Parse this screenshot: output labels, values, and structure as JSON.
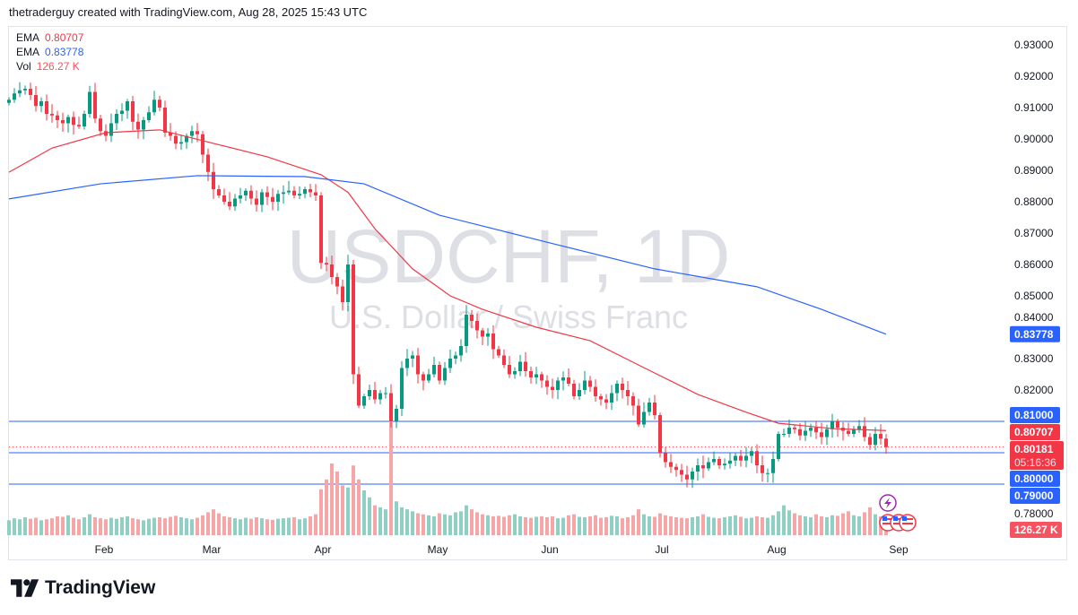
{
  "header": {
    "credit": "thetraderguy created with TradingView.com, Aug 28, 2025 15:43 UTC"
  },
  "legend": [
    {
      "name": "EMA",
      "value": "0.80707",
      "color": "#F23645"
    },
    {
      "name": "EMA",
      "value": "0.83778",
      "color": "#2962FF"
    },
    {
      "name": "Vol",
      "value": "126.27 K",
      "color": "#F7525F"
    }
  ],
  "watermark": {
    "symbol": "USDCHF, 1D",
    "description": "U.S. Dollar / Swiss Franc"
  },
  "logo": {
    "text": "TradingView"
  },
  "icons": {
    "event": "lightning-icon",
    "flags": "us-flag-icon"
  },
  "colors": {
    "up": "#089981",
    "down": "#F23645",
    "ema_fast": "#F23645",
    "ema_slow": "#2962FF",
    "level": "#2962FF"
  },
  "chart_data": {
    "type": "candlestick",
    "symbol": "USDCHF",
    "interval": "1D",
    "start_date": "2025-01-13",
    "end_date": "2025-08-28",
    "ylim": [
      0.775,
      0.935
    ],
    "price_ticks": [
      "0.93000",
      "0.92000",
      "0.91000",
      "0.90000",
      "0.89000",
      "0.88000",
      "0.87000",
      "0.86000",
      "0.85000",
      "0.84000",
      "0.83000",
      "0.82000",
      "0.81000",
      "0.80000",
      "0.79000",
      "0.78000"
    ],
    "time_labels": [
      "Feb",
      "Mar",
      "Apr",
      "May",
      "Jun",
      "Jul",
      "Aug",
      "Sep"
    ],
    "closes": [
      0.9125,
      0.9145,
      0.9155,
      0.916,
      0.914,
      0.9105,
      0.912,
      0.908,
      0.9075,
      0.906,
      0.905,
      0.907,
      0.9045,
      0.904,
      0.908,
      0.915,
      0.9065,
      0.9025,
      0.901,
      0.905,
      0.908,
      0.909,
      0.912,
      0.9055,
      0.903,
      0.906,
      0.9085,
      0.9125,
      0.91,
      0.902,
      0.901,
      0.8985,
      0.899,
      0.901,
      0.9025,
      0.9015,
      0.895,
      0.8895,
      0.884,
      0.882,
      0.88,
      0.8785,
      0.881,
      0.882,
      0.8835,
      0.881,
      0.879,
      0.883,
      0.8815,
      0.88,
      0.8825,
      0.883,
      0.8835,
      0.882,
      0.8825,
      0.884,
      0.883,
      0.882,
      0.8605,
      0.86,
      0.856,
      0.853,
      0.848,
      0.86,
      0.825,
      0.815,
      0.818,
      0.82,
      0.817,
      0.819,
      0.819,
      0.81,
      0.814,
      0.827,
      0.83,
      0.831,
      0.825,
      0.823,
      0.825,
      0.828,
      0.823,
      0.827,
      0.83,
      0.831,
      0.834,
      0.844,
      0.842,
      0.839,
      0.837,
      0.838,
      0.833,
      0.831,
      0.828,
      0.825,
      0.826,
      0.829,
      0.826,
      0.824,
      0.825,
      0.823,
      0.821,
      0.82,
      0.823,
      0.824,
      0.822,
      0.818,
      0.82,
      0.823,
      0.821,
      0.818,
      0.817,
      0.816,
      0.819,
      0.822,
      0.82,
      0.818,
      0.815,
      0.809,
      0.813,
      0.816,
      0.812,
      0.8,
      0.797,
      0.7955,
      0.7945,
      0.793,
      0.7915,
      0.794,
      0.796,
      0.795,
      0.797,
      0.798,
      0.796,
      0.7965,
      0.7975,
      0.799,
      0.7975,
      0.799,
      0.8005,
      0.796,
      0.7935,
      0.7935,
      0.798,
      0.806,
      0.806,
      0.808,
      0.8075,
      0.8055,
      0.807,
      0.808,
      0.8065,
      0.805,
      0.8075,
      0.81,
      0.808,
      0.807,
      0.806,
      0.8075,
      0.8085,
      0.805,
      0.8025,
      0.806,
      0.8045,
      0.80181
    ],
    "volumes_k": [
      150,
      170,
      160,
      180,
      165,
      175,
      150,
      160,
      170,
      190,
      185,
      200,
      175,
      160,
      180,
      210,
      180,
      170,
      160,
      175,
      165,
      180,
      190,
      170,
      160,
      150,
      165,
      175,
      180,
      170,
      185,
      195,
      180,
      170,
      160,
      175,
      200,
      230,
      260,
      220,
      190,
      180,
      170,
      160,
      175,
      165,
      180,
      170,
      160,
      155,
      165,
      170,
      175,
      180,
      160,
      170,
      190,
      210,
      460,
      560,
      720,
      640,
      500,
      480,
      700,
      560,
      450,
      380,
      300,
      280,
      260,
      1150,
      340,
      280,
      260,
      240,
      220,
      210,
      200,
      190,
      220,
      210,
      200,
      230,
      240,
      300,
      260,
      230,
      210,
      200,
      190,
      195,
      185,
      200,
      210,
      190,
      180,
      175,
      185,
      190,
      180,
      190,
      170,
      175,
      200,
      210,
      185,
      180,
      190,
      200,
      175,
      180,
      195,
      190,
      170,
      180,
      200,
      260,
      210,
      190,
      185,
      220,
      200,
      190,
      180,
      175,
      170,
      180,
      190,
      210,
      185,
      175,
      170,
      180,
      190,
      200,
      185,
      170,
      175,
      190,
      180,
      175,
      200,
      240,
      300,
      250,
      220,
      200,
      190,
      180,
      210,
      190,
      180,
      200,
      195,
      220,
      240,
      200,
      190,
      230,
      280,
      210,
      190,
      126.27
    ],
    "ema_fast": [
      [
        "2025-01-13",
        0.8894
      ],
      [
        "2025-01-23",
        0.8971
      ],
      [
        "2025-02-06",
        0.902
      ],
      [
        "2025-02-20",
        0.9029
      ],
      [
        "2025-03-06",
        0.8986
      ],
      [
        "2025-03-20",
        0.8943
      ],
      [
        "2025-04-03",
        0.8886
      ],
      [
        "2025-04-10",
        0.883
      ],
      [
        "2025-04-17",
        0.8714
      ],
      [
        "2025-04-28",
        0.8586
      ],
      [
        "2025-05-07",
        0.85
      ],
      [
        "2025-05-15",
        0.8457
      ],
      [
        "2025-05-29",
        0.84
      ],
      [
        "2025-06-12",
        0.8357
      ],
      [
        "2025-06-26",
        0.8271
      ],
      [
        "2025-07-10",
        0.8186
      ],
      [
        "2025-07-23",
        0.8129
      ],
      [
        "2025-07-31",
        0.8094
      ],
      [
        "2025-08-14",
        0.8077
      ],
      [
        "2025-08-28",
        0.80707
      ]
    ],
    "ema_slow": [
      [
        "2025-01-13",
        0.8809
      ],
      [
        "2025-02-05",
        0.8857
      ],
      [
        "2025-03-03",
        0.8883
      ],
      [
        "2025-03-31",
        0.888
      ],
      [
        "2025-04-15",
        0.8857
      ],
      [
        "2025-05-05",
        0.8757
      ],
      [
        "2025-06-02",
        0.8671
      ],
      [
        "2025-06-30",
        0.8586
      ],
      [
        "2025-07-25",
        0.8529
      ],
      [
        "2025-08-12",
        0.8457
      ],
      [
        "2025-08-28",
        0.83778
      ]
    ],
    "horizontal_levels": [
      0.81,
      0.8,
      0.79
    ],
    "last_price": 0.80181,
    "countdown": "05:16:36",
    "axis_labels": [
      {
        "text": "0.83778",
        "value": 0.83778,
        "color": "#2962FF"
      },
      {
        "text": "0.81000",
        "value": 0.81,
        "color": "#2962FF"
      },
      {
        "text": "0.80707",
        "value": 0.80707,
        "color": "#F23645"
      },
      {
        "text": "0.80181",
        "value": 0.80181,
        "color": "#F23645",
        "sub": "05:16:36"
      },
      {
        "text": "0.80000",
        "value": 0.8,
        "color": "#2962FF"
      },
      {
        "text": "0.79000",
        "value": 0.79,
        "color": "#2962FF"
      }
    ],
    "volume_label": "126.27 K"
  }
}
